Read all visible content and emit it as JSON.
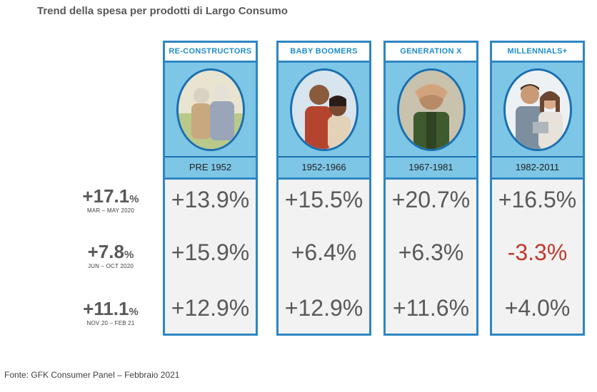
{
  "title": "Trend della spesa per prodotti di Largo Consumo",
  "footer": "Fonte: GFK Consumer Panel – Febbraio 2021",
  "colors": {
    "border": "#2e86c1",
    "header_text": "#1f8ecc",
    "panel": "#7ec6e6",
    "negative": "#c0392b"
  },
  "rows": [
    {
      "total": "+17.1",
      "pct": "%",
      "period": "MAR – MAY 2020"
    },
    {
      "total": "+7.8",
      "pct": "%",
      "period": "JUN – OCT 2020"
    },
    {
      "total": "+11.1",
      "pct": "%",
      "period": "NOV 20 – FEB 21"
    }
  ],
  "columns": [
    {
      "name": "RE-CONSTRUCTORS",
      "years": "PRE 1952",
      "values": [
        "+13.9%",
        "+15.9%",
        "+12.9%"
      ]
    },
    {
      "name": "BABY BOOMERS",
      "years": "1952-1966",
      "values": [
        "+15.5%",
        "+6.4%",
        "+12.9%"
      ]
    },
    {
      "name": "GENERATION  X",
      "years": "1967-1981",
      "values": [
        "+20.7%",
        "+6.3%",
        "+11.6%"
      ]
    },
    {
      "name": "MILLENNIALS+",
      "years": "1982-2011",
      "values": [
        "+16.5%",
        "-3.3%",
        "+4.0%"
      ]
    }
  ]
}
